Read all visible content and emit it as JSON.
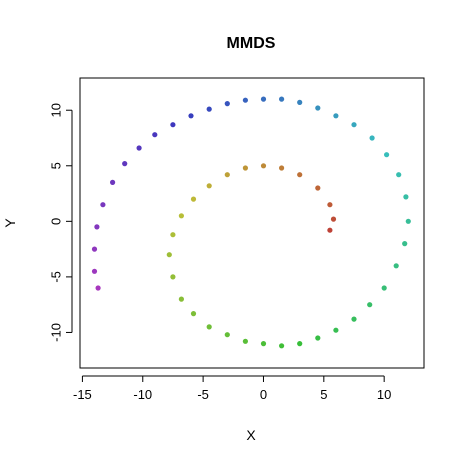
{
  "chart_data": {
    "type": "scatter",
    "title": "MMDS",
    "xlabel": "X",
    "ylabel": "Y",
    "xlim": [
      -15.2,
      13.3
    ],
    "ylim": [
      -13.2,
      12.9
    ],
    "xticks": [
      -15,
      -10,
      -5,
      0,
      5,
      10
    ],
    "yticks": [
      -10,
      -5,
      0,
      5,
      10
    ],
    "grid": false,
    "legend": "none",
    "color_gradient": "hue along the spiral: red at the inner end through orange, yellow-green, green, teal, blue to purple at the outer end",
    "series": [
      {
        "points": [
          [
            5.5,
            -0.8
          ],
          [
            5.8,
            0.2
          ],
          [
            5.5,
            1.5
          ],
          [
            4.5,
            3.0
          ],
          [
            3.0,
            4.2
          ],
          [
            1.5,
            4.8
          ],
          [
            0.0,
            5.0
          ],
          [
            -1.5,
            4.8
          ],
          [
            -3.0,
            4.2
          ],
          [
            -4.5,
            3.2
          ],
          [
            -5.8,
            2.0
          ],
          [
            -6.8,
            0.5
          ],
          [
            -7.5,
            -1.2
          ],
          [
            -7.8,
            -3.0
          ],
          [
            -7.5,
            -5.0
          ],
          [
            -6.8,
            -7.0
          ],
          [
            -5.8,
            -8.3
          ],
          [
            -4.5,
            -9.5
          ],
          [
            -3.0,
            -10.2
          ],
          [
            -1.5,
            -10.8
          ],
          [
            0.0,
            -11.0
          ],
          [
            1.5,
            -11.2
          ],
          [
            3.0,
            -11.0
          ],
          [
            4.5,
            -10.5
          ],
          [
            6.0,
            -9.8
          ],
          [
            7.5,
            -8.8
          ],
          [
            8.8,
            -7.5
          ],
          [
            10.0,
            -6.0
          ],
          [
            11.0,
            -4.0
          ],
          [
            11.7,
            -2.0
          ],
          [
            12.0,
            0.0
          ],
          [
            11.8,
            2.2
          ],
          [
            11.2,
            4.2
          ],
          [
            10.2,
            6.0
          ],
          [
            9.0,
            7.5
          ],
          [
            7.5,
            8.7
          ],
          [
            6.0,
            9.5
          ],
          [
            4.5,
            10.2
          ],
          [
            3.0,
            10.7
          ],
          [
            1.5,
            11.0
          ],
          [
            0.0,
            11.0
          ],
          [
            -1.5,
            10.9
          ],
          [
            -3.0,
            10.6
          ],
          [
            -4.5,
            10.1
          ],
          [
            -6.0,
            9.5
          ],
          [
            -7.5,
            8.7
          ],
          [
            -9.0,
            7.8
          ],
          [
            -10.3,
            6.6
          ],
          [
            -11.5,
            5.2
          ],
          [
            -12.5,
            3.5
          ],
          [
            -13.3,
            1.5
          ],
          [
            -13.8,
            -0.5
          ],
          [
            -14.0,
            -2.5
          ],
          [
            -14.0,
            -4.5
          ],
          [
            -13.7,
            -6.0
          ]
        ],
        "color_start": "#c62828",
        "color_end": "#a040c0"
      }
    ]
  }
}
